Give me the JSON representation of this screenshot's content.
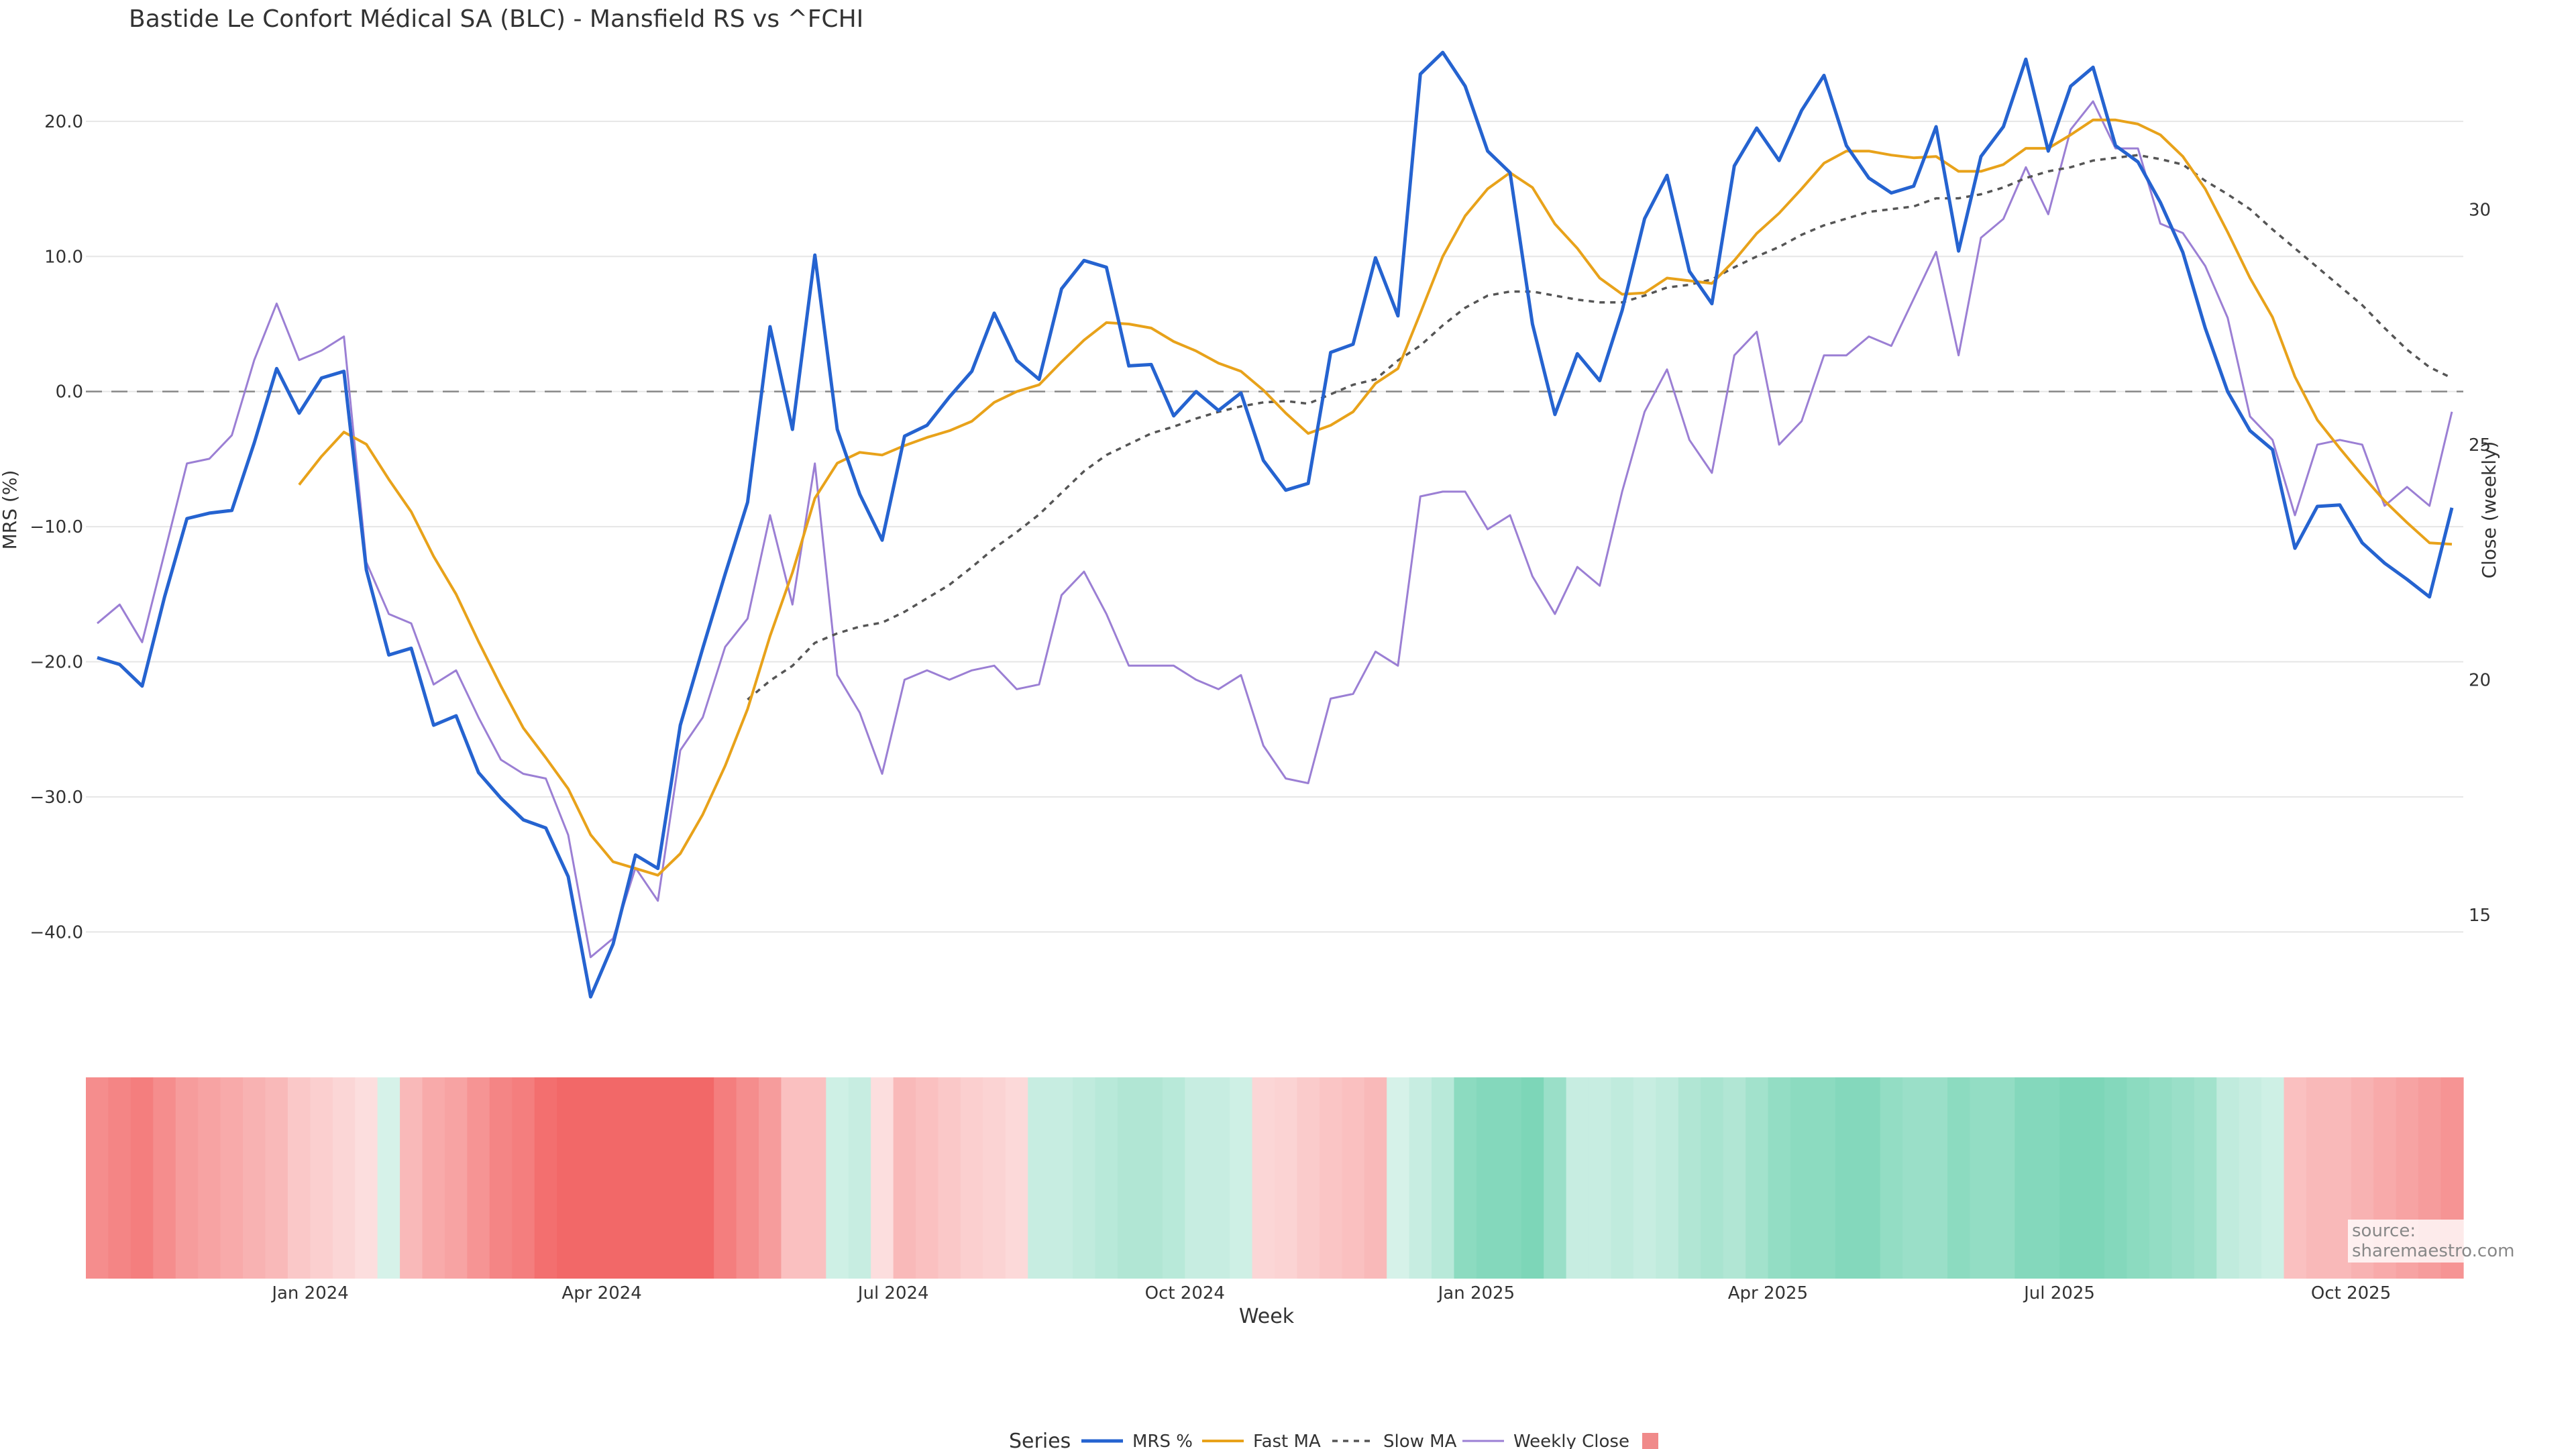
{
  "title": "Bastide Le Confort Médical SA (BLC) - Mansfield RS vs ^FCHI",
  "source": "source: sharemaestro.com",
  "colors": {
    "mrs": "#2563d0",
    "fast": "#e8a21a",
    "slow": "#555555",
    "close": "#9b7fd4",
    "zero": "#888888",
    "grid": "#e6e6e6"
  },
  "chart_data": {
    "type": "line",
    "title": "Bastide Le Confort Médical SA (BLC) - Mansfield RS vs ^FCHI",
    "xlabel": "Week",
    "ylabel_left": "MRS (%)",
    "ylabel_right": "Close (weekly)",
    "ylim_left": [
      -45,
      26
    ],
    "ylim_right": [
      13.2,
      33.6
    ],
    "x_ticks": [
      "Jan 2024",
      "Apr 2024",
      "Jul 2024",
      "Oct 2024",
      "Jan 2025",
      "Apr 2025",
      "Jul 2025",
      "Oct 2025"
    ],
    "x_tick_weeks": [
      9.5,
      22.5,
      35.5,
      48.5,
      61.5,
      74.5,
      87.5,
      100.5
    ],
    "y_ticks_left": [
      -40,
      -30,
      -20,
      -10,
      0,
      10,
      20
    ],
    "y_tick_labels_left": [
      "−40.0",
      "−30.0",
      "−20.0",
      "−10.0",
      "0.0",
      "10.0",
      "20.0"
    ],
    "y_ticks_right": [
      15,
      20,
      25,
      30
    ],
    "y_tick_labels_right": [
      "15",
      "20",
      "25",
      "30"
    ],
    "grid": true,
    "zero_line": true,
    "legend": {
      "title": "Series",
      "placement": "bottom",
      "entries": [
        "MRS %",
        "Fast MA",
        "Slow MA",
        "Weekly Close",
        ""
      ]
    },
    "series": [
      {
        "name": "MRS %",
        "axis": "left",
        "values": [
          -19.7,
          -20.2,
          -21.8,
          -15.2,
          -9.4,
          -9.0,
          -8.8,
          -3.8,
          1.7,
          -1.6,
          1.0,
          1.5,
          -13.2,
          -19.5,
          -19.0,
          -24.7,
          -24.0,
          -28.2,
          -30.1,
          -31.7,
          -32.3,
          -35.9,
          -44.8,
          -40.9,
          -34.3,
          -35.3,
          -24.7,
          -19.0,
          -13.5,
          -8.2,
          4.8,
          -2.8,
          10.1,
          -2.8,
          -7.6,
          -11.0,
          -3.3,
          -2.5,
          -0.4,
          1.5,
          5.8,
          2.3,
          0.9,
          7.6,
          9.7,
          9.2,
          1.9,
          2.0,
          -1.8,
          0.0,
          -1.4,
          -0.1,
          -5.1,
          -7.3,
          -6.8,
          2.9,
          3.5,
          9.9,
          5.6,
          23.5,
          25.1,
          22.6,
          17.8,
          16.2,
          5.0,
          -1.7,
          2.8,
          0.8,
          6.0,
          12.8,
          16.0,
          8.9,
          6.5,
          16.7,
          19.5,
          17.1,
          20.8,
          23.4,
          18.2,
          15.8,
          14.7,
          15.2,
          19.6,
          10.4,
          17.4,
          19.6,
          24.6,
          17.8,
          22.6,
          24.0,
          18.2,
          17.0,
          14.0,
          10.3,
          4.7,
          0.0,
          -2.9,
          -4.3,
          -11.6,
          -8.5,
          -8.4,
          -11.2,
          -12.7,
          -13.9,
          -15.2,
          -8.6
        ]
      },
      {
        "name": "Fast MA",
        "axis": "left",
        "values": [
          null,
          null,
          null,
          null,
          null,
          null,
          null,
          null,
          null,
          -6.9,
          -4.8,
          -3.0,
          -3.9,
          -6.5,
          -8.9,
          -12.2,
          -15.0,
          -18.5,
          -21.8,
          -24.9,
          -27.1,
          -29.4,
          -32.8,
          -34.8,
          -35.3,
          -35.8,
          -34.2,
          -31.3,
          -27.7,
          -23.5,
          -18.1,
          -13.4,
          -7.9,
          -5.3,
          -4.5,
          -4.7,
          -4.0,
          -3.4,
          -2.9,
          -2.2,
          -0.8,
          0.0,
          0.5,
          2.2,
          3.8,
          5.1,
          5.0,
          4.7,
          3.7,
          3.0,
          2.1,
          1.5,
          0.1,
          -1.6,
          -3.1,
          -2.5,
          -1.5,
          0.6,
          1.7,
          5.8,
          10.0,
          13.0,
          15.0,
          16.2,
          15.1,
          12.4,
          10.6,
          8.4,
          7.2,
          7.3,
          8.4,
          8.2,
          8.0,
          9.7,
          11.7,
          13.2,
          15.0,
          16.9,
          17.8,
          17.8,
          17.5,
          17.3,
          17.4,
          16.3,
          16.3,
          16.8,
          18.0,
          18.0,
          19.0,
          20.1,
          20.1,
          19.8,
          19.0,
          17.4,
          15.0,
          11.8,
          8.4,
          5.5,
          1.1,
          -2.1,
          -4.2,
          -6.2,
          -8.1,
          -9.7,
          -11.2,
          -11.3
        ]
      },
      {
        "name": "Slow MA",
        "axis": "left",
        "values": [
          null,
          null,
          null,
          null,
          null,
          null,
          null,
          null,
          null,
          null,
          null,
          null,
          null,
          null,
          null,
          null,
          null,
          null,
          null,
          null,
          null,
          null,
          null,
          null,
          null,
          null,
          null,
          null,
          null,
          -22.8,
          -21.4,
          -20.3,
          -18.6,
          -17.9,
          -17.4,
          -17.1,
          -16.3,
          -15.3,
          -14.3,
          -13.0,
          -11.6,
          -10.4,
          -9.1,
          -7.5,
          -5.9,
          -4.7,
          -3.9,
          -3.1,
          -2.6,
          -2.0,
          -1.5,
          -1.1,
          -0.8,
          -0.7,
          -0.9,
          -0.2,
          0.5,
          0.9,
          2.3,
          3.4,
          4.9,
          6.2,
          7.1,
          7.4,
          7.4,
          7.1,
          6.8,
          6.6,
          6.6,
          7.1,
          7.7,
          7.9,
          8.3,
          9.2,
          10.0,
          10.7,
          11.6,
          12.3,
          12.8,
          13.3,
          13.5,
          13.7,
          14.3,
          14.3,
          14.6,
          15.1,
          15.8,
          16.3,
          16.6,
          17.1,
          17.3,
          17.5,
          17.2,
          16.8,
          15.6,
          14.6,
          13.5,
          12.0,
          10.6,
          9.2,
          7.8,
          6.4,
          4.7,
          3.1,
          1.8,
          1.0
        ]
      },
      {
        "name": "Weekly Close",
        "axis": "right",
        "values": [
          21.2,
          21.6,
          20.8,
          22.7,
          24.6,
          24.7,
          25.2,
          26.8,
          28.0,
          26.8,
          27.0,
          27.3,
          22.5,
          21.4,
          21.2,
          19.9,
          20.2,
          19.2,
          18.3,
          18.0,
          17.9,
          16.7,
          14.1,
          14.5,
          16.0,
          15.3,
          18.5,
          19.2,
          20.7,
          21.3,
          23.5,
          21.6,
          24.6,
          20.1,
          19.3,
          18.0,
          20.0,
          20.2,
          20.0,
          20.2,
          20.3,
          19.8,
          19.9,
          21.8,
          22.3,
          21.4,
          20.3,
          20.3,
          20.3,
          20.0,
          19.8,
          20.1,
          18.6,
          17.9,
          17.8,
          19.6,
          19.7,
          20.6,
          20.3,
          23.9,
          24.0,
          24.0,
          23.2,
          23.5,
          22.2,
          21.4,
          22.4,
          22.0,
          24.0,
          25.7,
          26.6,
          25.1,
          24.4,
          26.9,
          27.4,
          25.0,
          25.5,
          26.9,
          26.9,
          27.3,
          27.1,
          28.1,
          29.1,
          26.9,
          29.4,
          29.8,
          30.9,
          29.9,
          31.7,
          32.3,
          31.3,
          31.3,
          29.7,
          29.5,
          28.8,
          27.7,
          25.6,
          25.1,
          23.5,
          25.0,
          25.1,
          25.0,
          23.7,
          24.1,
          23.7,
          25.7
        ]
      }
    ],
    "heatmap": {
      "type": "heatmap",
      "values": [
        -60,
        -65,
        -70,
        -60,
        -50,
        -45,
        -40,
        -35,
        -30,
        -20,
        -15,
        -10,
        -5,
        10,
        -30,
        -40,
        -45,
        -55,
        -65,
        -70,
        -80,
        -85,
        -85,
        -85,
        -85,
        -85,
        -85,
        -85,
        -70,
        -60,
        -50,
        -25,
        -25,
        15,
        20,
        -5,
        -30,
        -25,
        -20,
        -15,
        -12,
        -8,
        20,
        20,
        25,
        30,
        35,
        35,
        30,
        20,
        20,
        15,
        -10,
        -12,
        -18,
        -22,
        -25,
        -30,
        10,
        20,
        30,
        60,
        65,
        65,
        70,
        50,
        20,
        20,
        25,
        20,
        25,
        35,
        40,
        35,
        45,
        55,
        60,
        60,
        65,
        65,
        55,
        50,
        50,
        60,
        55,
        55,
        65,
        65,
        70,
        70,
        65,
        60,
        55,
        50,
        45,
        25,
        20,
        15,
        -25,
        -30,
        -30,
        -35,
        -40,
        -45,
        -50,
        -55
      ]
    }
  }
}
